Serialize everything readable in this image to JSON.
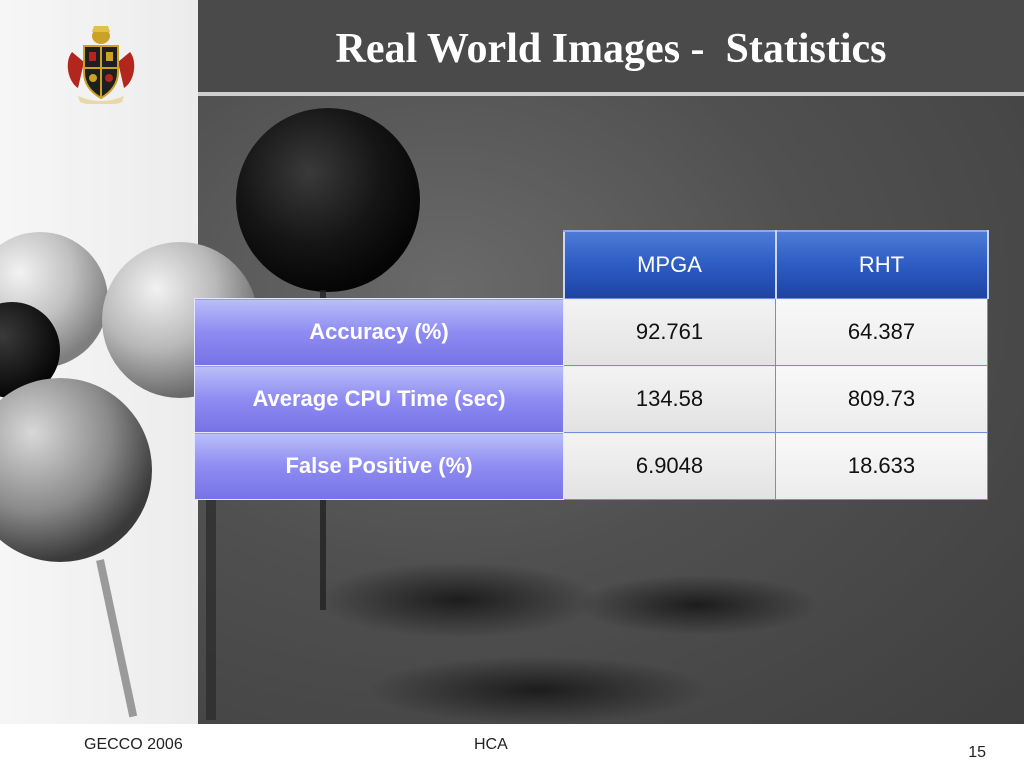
{
  "slide": {
    "title": "Real World Images -  Statistics",
    "logo": "university-crest"
  },
  "table": {
    "columns": [
      "MPGA",
      "RHT"
    ],
    "rows": [
      {
        "label": "Accuracy (%)",
        "values": [
          "92.761",
          "64.387"
        ]
      },
      {
        "label": "Average CPU Time (sec)",
        "values": [
          "134.58",
          "809.73"
        ]
      },
      {
        "label": "False Positive (%)",
        "values": [
          "6.9048",
          "18.633"
        ]
      }
    ]
  },
  "footer": {
    "left": "GECCO 2006",
    "center": "HCA",
    "page_number": "15"
  },
  "colors": {
    "title_bar": "#4a4a4a",
    "header_blue": "#2d5cc3",
    "row_label_purple": "#8e8bf2",
    "cell_gray": "#e8e8e8"
  }
}
